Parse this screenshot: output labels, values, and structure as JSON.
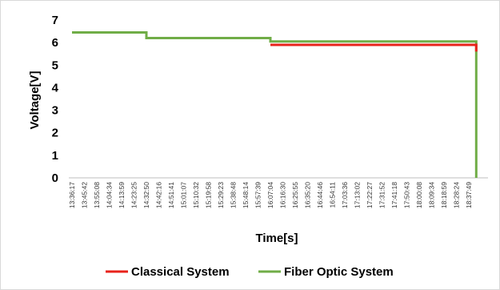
{
  "chart_data": {
    "type": "line",
    "title": "",
    "xlabel": "Time[s]",
    "ylabel": "Voltage[V]",
    "ylim": [
      0,
      7
    ],
    "yticks": [
      "0",
      "1",
      "2",
      "3",
      "4",
      "5",
      "6",
      "7"
    ],
    "grid": false,
    "legend_position": "bottom",
    "categories": [
      "13:36:17",
      "13:45:42",
      "13:55:08",
      "14:04:34",
      "14:13:59",
      "14:23:25",
      "14:32:50",
      "14:42:16",
      "14:51:41",
      "15:01:07",
      "15:10:32",
      "15:19:58",
      "15:29:23",
      "15:38:48",
      "15:48:14",
      "15:57:39",
      "16:07:04",
      "16:16:30",
      "16:25:55",
      "16:35:20",
      "16:44:46",
      "16:54:11",
      "17:03:36",
      "17:13:02",
      "17:22:27",
      "17:31:52",
      "17:41:18",
      "17:50:43",
      "18:00:08",
      "18:09:34",
      "18:18:59",
      "18:28:24",
      "18:37:49"
    ],
    "series": [
      {
        "name": "Classical System",
        "color": "#e8231b",
        "points": [
          {
            "x": "16:07:04",
            "y": 5.9
          },
          {
            "x": "18:43:30",
            "y": 5.9
          },
          {
            "x": "18:43:30",
            "y": 5.6
          }
        ]
      },
      {
        "name": "Fiber Optic System",
        "color": "#70ad47",
        "points": [
          {
            "x": "13:36:17",
            "y": 6.45
          },
          {
            "x": "14:32:50",
            "y": 6.45
          },
          {
            "x": "14:32:50",
            "y": 6.2
          },
          {
            "x": "16:07:04",
            "y": 6.2
          },
          {
            "x": "16:07:04",
            "y": 6.05
          },
          {
            "x": "18:43:30",
            "y": 6.05
          },
          {
            "x": "18:43:30",
            "y": 0
          }
        ]
      }
    ]
  }
}
